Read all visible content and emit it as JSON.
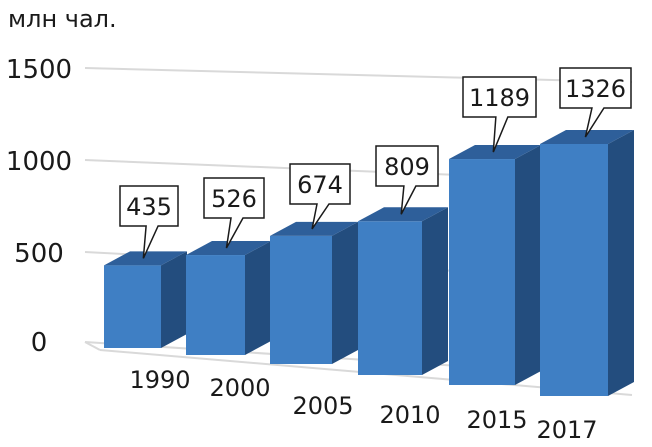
{
  "chart_data": {
    "type": "bar",
    "title": "",
    "xlabel": "",
    "ylabel": "млн чал.",
    "categories": [
      "1990",
      "2000",
      "2005",
      "2010",
      "2015",
      "2017"
    ],
    "values": [
      435,
      526,
      674,
      809,
      1189,
      1326
    ],
    "data_labels": [
      "435",
      "526",
      "674",
      "809",
      "1189",
      "1326"
    ],
    "y_ticks": [
      "0",
      "500",
      "1000",
      "1500"
    ],
    "ylim": [
      0,
      1500
    ],
    "grid": true,
    "legend": "none",
    "three_d": true
  },
  "colors": {
    "bar_front": "#3f7fc4",
    "bar_top": "#2e5f9a",
    "bar_side": "#234d7e",
    "grid": "#d9d9d9",
    "label_border": "#1a1a1a"
  }
}
